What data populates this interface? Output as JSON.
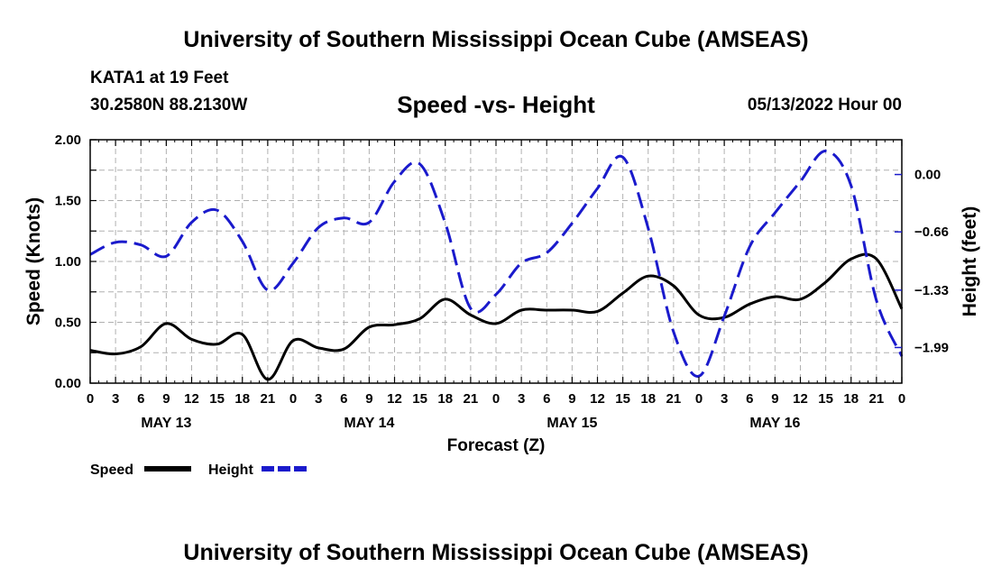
{
  "header": {
    "title": "University of Southern Mississippi Ocean Cube (AMSEAS)",
    "station": "KATA1 at 19 Feet",
    "coords": "30.2580N  88.2130W",
    "chart_title": "Speed -vs- Height",
    "run_time": "05/13/2022 Hour 00",
    "footer_title": "University of Southern Mississippi Ocean Cube (AMSEAS)"
  },
  "colors": {
    "speed": "#000000",
    "height": "#1a1acc",
    "grid": "#b0b0b0"
  },
  "chart_data": {
    "type": "line",
    "title": "Speed -vs- Height",
    "xlabel": "Forecast (Z)",
    "ylabel": "Speed (Knots)",
    "y2label": "Height (feet)",
    "ylim": [
      0,
      2.0
    ],
    "yticks": [
      "0.00",
      "0.50",
      "1.00",
      "1.50",
      "2.00"
    ],
    "y2lim": [
      -2.4,
      0.4
    ],
    "y2ticks": [
      {
        "value": 0.0,
        "label": "0.00"
      },
      {
        "value": -0.66,
        "label": "−0.66"
      },
      {
        "value": -1.33,
        "label": "−1.33"
      },
      {
        "value": -1.99,
        "label": "−1.99"
      }
    ],
    "xlim": [
      0,
      96
    ],
    "xtick_labels": [
      "0",
      "3",
      "6",
      "9",
      "12",
      "15",
      "18",
      "21",
      "0",
      "3",
      "6",
      "9",
      "12",
      "15",
      "18",
      "21",
      "0",
      "3",
      "6",
      "9",
      "12",
      "15",
      "18",
      "21",
      "0",
      "3",
      "6",
      "9",
      "12",
      "15",
      "18",
      "21",
      "0"
    ],
    "date_labels": [
      {
        "hour": 9,
        "label": "MAY 13"
      },
      {
        "hour": 33,
        "label": "MAY 14"
      },
      {
        "hour": 57,
        "label": "MAY 15"
      },
      {
        "hour": 81,
        "label": "MAY 16"
      }
    ],
    "legend": [
      {
        "label": "Speed",
        "style": "solid"
      },
      {
        "label": "Height",
        "style": "dashed"
      }
    ],
    "series": [
      {
        "name": "Speed",
        "style": "solid",
        "x": [
          0,
          3,
          6,
          9,
          12,
          15,
          18,
          21,
          24,
          27,
          30,
          33,
          36,
          39,
          42,
          45,
          48,
          51,
          54,
          57,
          60,
          63,
          66,
          69,
          72,
          75,
          78,
          81,
          84,
          87,
          90,
          93,
          96
        ],
        "values": [
          0.27,
          0.24,
          0.3,
          0.49,
          0.36,
          0.32,
          0.4,
          0.03,
          0.35,
          0.29,
          0.28,
          0.46,
          0.48,
          0.53,
          0.69,
          0.56,
          0.49,
          0.6,
          0.6,
          0.6,
          0.59,
          0.74,
          0.88,
          0.8,
          0.56,
          0.54,
          0.65,
          0.71,
          0.69,
          0.83,
          1.02,
          1.02,
          0.61
        ]
      },
      {
        "name": "Height",
        "style": "dashed",
        "x": [
          0,
          3,
          6,
          9,
          12,
          15,
          18,
          21,
          24,
          27,
          30,
          33,
          36,
          39,
          42,
          45,
          48,
          51,
          54,
          57,
          60,
          63,
          66,
          69,
          72,
          75,
          78,
          81,
          84,
          87,
          90,
          93,
          96
        ],
        "values": [
          -0.92,
          -0.78,
          -0.81,
          -0.94,
          -0.55,
          -0.41,
          -0.77,
          -1.33,
          -1.02,
          -0.61,
          -0.5,
          -0.55,
          -0.08,
          0.12,
          -0.56,
          -1.54,
          -1.38,
          -1.02,
          -0.9,
          -0.56,
          -0.16,
          0.2,
          -0.62,
          -1.81,
          -2.32,
          -1.63,
          -0.83,
          -0.44,
          -0.08,
          0.27,
          -0.13,
          -1.45,
          -2.09
        ]
      }
    ]
  }
}
